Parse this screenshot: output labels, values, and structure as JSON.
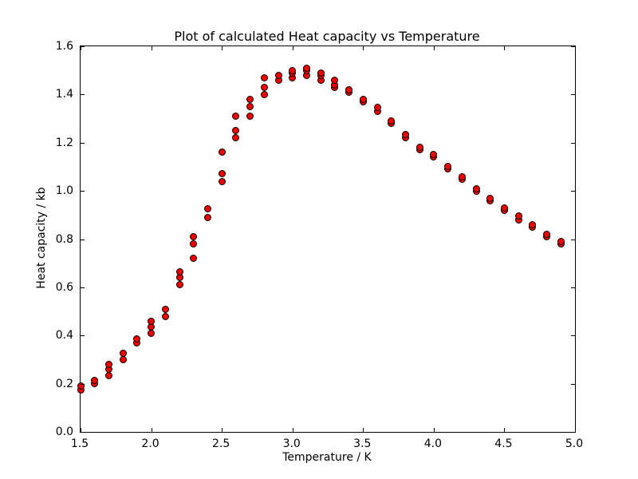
{
  "chart_data": {
    "type": "scatter",
    "title": "Plot of calculated Heat capacity vs Temperature",
    "xlabel": "Temperature / K",
    "ylabel": "Heat capacity / kb",
    "xlim": [
      1.5,
      5.0
    ],
    "ylim": [
      0.0,
      1.6
    ],
    "xticks": [
      "1.5",
      "2.0",
      "2.5",
      "3.0",
      "3.5",
      "4.0",
      "4.5",
      "5.0"
    ],
    "yticks": [
      "0.0",
      "0.2",
      "0.4",
      "0.6",
      "0.8",
      "1.0",
      "1.2",
      "1.4",
      "1.6"
    ],
    "grid": false,
    "legend": "none",
    "marker": "circle",
    "marker_color": "#ee0000",
    "marker_edge_color": "#000000",
    "points": [
      [
        1.5,
        0.175
      ],
      [
        1.5,
        0.19
      ],
      [
        1.6,
        0.2
      ],
      [
        1.6,
        0.215
      ],
      [
        1.7,
        0.235
      ],
      [
        1.7,
        0.26
      ],
      [
        1.7,
        0.28
      ],
      [
        1.8,
        0.3
      ],
      [
        1.8,
        0.325
      ],
      [
        1.9,
        0.37
      ],
      [
        1.9,
        0.385
      ],
      [
        2.0,
        0.41
      ],
      [
        2.0,
        0.435
      ],
      [
        2.0,
        0.46
      ],
      [
        2.1,
        0.48
      ],
      [
        2.1,
        0.51
      ],
      [
        2.2,
        0.61
      ],
      [
        2.2,
        0.64
      ],
      [
        2.2,
        0.665
      ],
      [
        2.3,
        0.72
      ],
      [
        2.3,
        0.78
      ],
      [
        2.3,
        0.81
      ],
      [
        2.4,
        0.89
      ],
      [
        2.4,
        0.925
      ],
      [
        2.5,
        1.04
      ],
      [
        2.5,
        1.07
      ],
      [
        2.5,
        1.16
      ],
      [
        2.6,
        1.22
      ],
      [
        2.6,
        1.25
      ],
      [
        2.6,
        1.31
      ],
      [
        2.7,
        1.31
      ],
      [
        2.7,
        1.35
      ],
      [
        2.7,
        1.38
      ],
      [
        2.8,
        1.4
      ],
      [
        2.8,
        1.43
      ],
      [
        2.8,
        1.47
      ],
      [
        2.9,
        1.46
      ],
      [
        2.9,
        1.48
      ],
      [
        3.0,
        1.47
      ],
      [
        3.0,
        1.49
      ],
      [
        3.0,
        1.5
      ],
      [
        3.1,
        1.48
      ],
      [
        3.1,
        1.5
      ],
      [
        3.1,
        1.51
      ],
      [
        3.2,
        1.46
      ],
      [
        3.2,
        1.48
      ],
      [
        3.2,
        1.49
      ],
      [
        3.3,
        1.43
      ],
      [
        3.3,
        1.44
      ],
      [
        3.3,
        1.46
      ],
      [
        3.4,
        1.41
      ],
      [
        3.4,
        1.42
      ],
      [
        3.5,
        1.37
      ],
      [
        3.5,
        1.38
      ],
      [
        3.6,
        1.33
      ],
      [
        3.6,
        1.345
      ],
      [
        3.7,
        1.28
      ],
      [
        3.7,
        1.29
      ],
      [
        3.8,
        1.22
      ],
      [
        3.8,
        1.235
      ],
      [
        3.9,
        1.17
      ],
      [
        3.9,
        1.18
      ],
      [
        4.0,
        1.14
      ],
      [
        4.0,
        1.15
      ],
      [
        4.1,
        1.09
      ],
      [
        4.1,
        1.1
      ],
      [
        4.2,
        1.05
      ],
      [
        4.2,
        1.06
      ],
      [
        4.3,
        1.0
      ],
      [
        4.3,
        1.01
      ],
      [
        4.4,
        0.96
      ],
      [
        4.4,
        0.97
      ],
      [
        4.5,
        0.92
      ],
      [
        4.5,
        0.93
      ],
      [
        4.6,
        0.88
      ],
      [
        4.6,
        0.895
      ],
      [
        4.7,
        0.85
      ],
      [
        4.7,
        0.86
      ],
      [
        4.8,
        0.81
      ],
      [
        4.8,
        0.82
      ],
      [
        4.9,
        0.78
      ],
      [
        4.9,
        0.79
      ]
    ]
  }
}
